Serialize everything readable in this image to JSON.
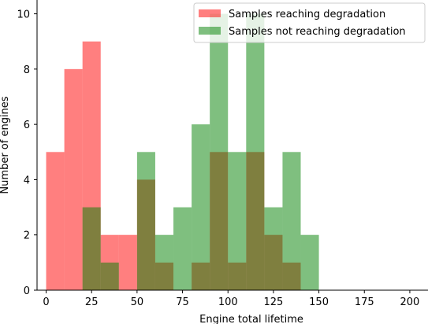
{
  "chart_data": {
    "type": "bar",
    "subtype": "overlapping-histogram",
    "title": "",
    "xlabel": "Engine total lifetime",
    "ylabel": "Number of engines",
    "xlim": [
      -5,
      210
    ],
    "ylim": [
      0,
      10.5
    ],
    "xticks": [
      0,
      25,
      50,
      75,
      100,
      125,
      150,
      175,
      200
    ],
    "yticks": [
      0,
      2,
      4,
      6,
      8,
      10
    ],
    "bin_width": 10,
    "grid": false,
    "legend_position": "top-right",
    "series": [
      {
        "name": "Samples reaching degradation",
        "color": "#ff0000",
        "alpha": 0.5,
        "bin_starts": [
          0,
          10,
          20,
          30,
          40,
          50,
          60,
          70,
          80,
          90,
          100,
          110,
          120,
          130
        ],
        "values": [
          5,
          8,
          9,
          2,
          2,
          4,
          1,
          0,
          1,
          5,
          1,
          5,
          2,
          1
        ]
      },
      {
        "name": "Samples not reaching degradation",
        "color": "#008000",
        "alpha": 0.5,
        "bin_starts": [
          20,
          30,
          40,
          50,
          60,
          70,
          80,
          90,
          100,
          110,
          120,
          130,
          140
        ],
        "values": [
          3,
          1,
          0,
          5,
          2,
          3,
          6,
          10,
          5,
          10,
          3,
          5,
          2
        ]
      }
    ]
  }
}
